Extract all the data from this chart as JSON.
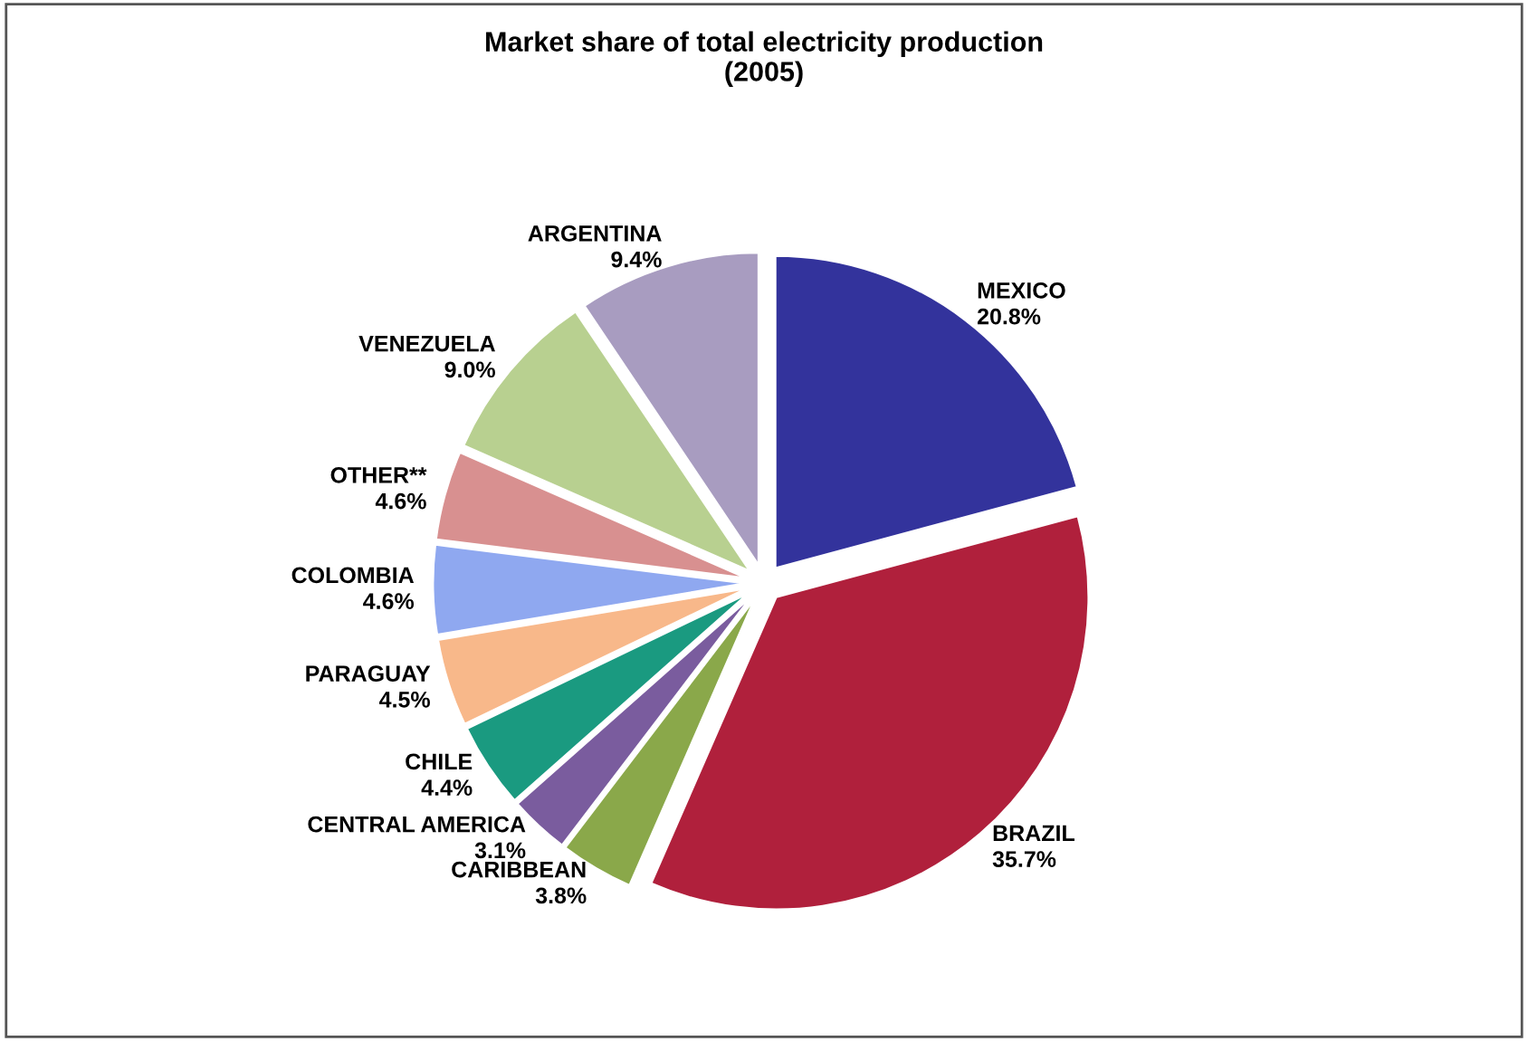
{
  "chart_data": {
    "type": "pie",
    "title": "Market share of total electricity production\n(2005)",
    "categories": [
      "MEXICO",
      "BRAZIL",
      "CARIBBEAN",
      "CENTRAL AMERICA",
      "CHILE",
      "PARAGUAY",
      "COLOMBIA",
      "OTHER**",
      "VENEZUELA",
      "ARGENTINA"
    ],
    "values": [
      20.8,
      35.7,
      3.8,
      3.1,
      4.4,
      4.5,
      4.6,
      4.6,
      9.0,
      9.4
    ],
    "value_labels": [
      "20.8%",
      "35.7%",
      "3.8%",
      "3.1%",
      "4.4%",
      "4.5%",
      "4.6%",
      "4.6%",
      "9.0%",
      "9.4%"
    ],
    "colors": [
      "#33339c",
      "#b0203c",
      "#8aa84a",
      "#7a5c9e",
      "#1a9a80",
      "#f8b88a",
      "#8fa8f0",
      "#d89090",
      "#b8d090",
      "#a89cc0"
    ],
    "legend": false
  }
}
